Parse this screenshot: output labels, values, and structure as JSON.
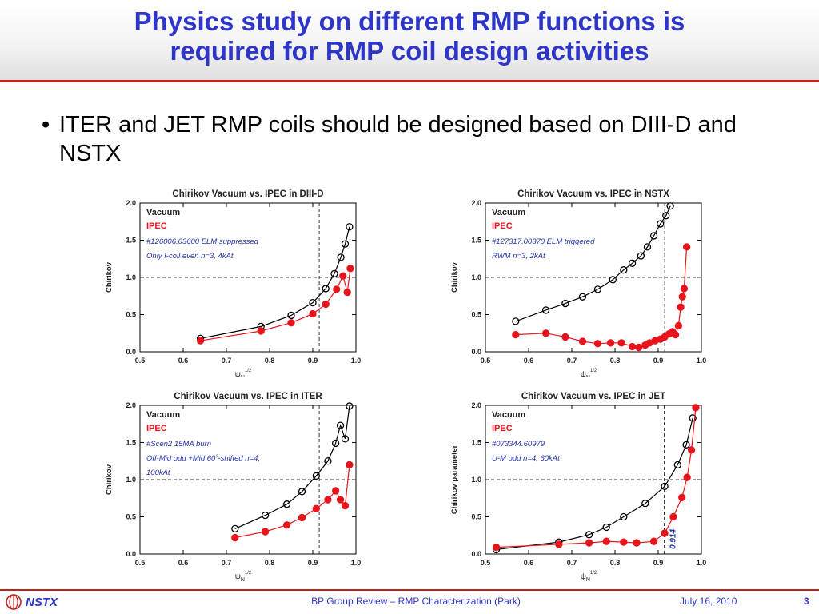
{
  "slide": {
    "title_line1": "Physics study on different RMP functions is",
    "title_line2": "required for RMP coil design activities",
    "bullet_text": "ITER and JET RMP coils should be designed based on DIII-D and NSTX",
    "bullet_glyph": "•"
  },
  "footer": {
    "logo_text": "NSTX",
    "center_text": "BP Group Review  – RMP Characterization (Park)",
    "date": "July 16, 2010",
    "page_number": "3"
  },
  "colors": {
    "title": "#2e36c8",
    "accent_rule": "#c0241f",
    "vacuum": "#000000",
    "ipec": "#e8141c",
    "annotation": "#2332a8"
  },
  "chart_data": [
    {
      "type": "line",
      "title": "Chirikov Vacuum vs. IPEC in DIII-D",
      "xlabel": "ψN1/2",
      "ylabel": "Chirikov",
      "xlim": [
        0.5,
        1.0
      ],
      "ylim": [
        0.0,
        2.0
      ],
      "xticks": [
        "0.5",
        "0.6",
        "0.7",
        "0.8",
        "0.9",
        "1.0"
      ],
      "yticks": [
        "0.0",
        "0.5",
        "1.0",
        "1.5",
        "2.0"
      ],
      "ref_vline": 0.915,
      "ref_hline": 1.0,
      "legend": [
        "Vacuum",
        "IPEC"
      ],
      "annotations": [
        "#126006.03600 ELM suppressed",
        "Only I-coil even n=3, 4kAt"
      ],
      "series": [
        {
          "name": "Vacuum",
          "x": [
            0.64,
            0.78,
            0.85,
            0.9,
            0.93,
            0.95,
            0.965,
            0.975,
            0.985
          ],
          "y": [
            0.18,
            0.34,
            0.49,
            0.66,
            0.85,
            1.05,
            1.27,
            1.45,
            1.68
          ]
        },
        {
          "name": "IPEC",
          "x": [
            0.64,
            0.78,
            0.85,
            0.9,
            0.93,
            0.955,
            0.97,
            0.98,
            0.987
          ],
          "y": [
            0.15,
            0.28,
            0.39,
            0.51,
            0.64,
            0.84,
            1.02,
            0.8,
            1.12
          ]
        }
      ]
    },
    {
      "type": "line",
      "title": "Chirikov Vacuum vs. IPEC in NSTX",
      "xlabel": "ψN1/2",
      "ylabel": "Chirikov",
      "xlim": [
        0.5,
        1.0
      ],
      "ylim": [
        0.0,
        2.0
      ],
      "xticks": [
        "0.5",
        "0.6",
        "0.7",
        "0.8",
        "0.9",
        "1.0"
      ],
      "yticks": [
        "0.0",
        "0.5",
        "1.0",
        "1.5",
        "2.0"
      ],
      "ref_vline": 0.915,
      "ref_hline": 1.0,
      "legend": [
        "Vacuum",
        "IPEC"
      ],
      "annotations": [
        "#127317.00370 ELM triggered",
        "RWM n=3, 2kAt"
      ],
      "series": [
        {
          "name": "Vacuum",
          "x": [
            0.57,
            0.64,
            0.685,
            0.725,
            0.76,
            0.795,
            0.82,
            0.84,
            0.86,
            0.875,
            0.89,
            0.905,
            0.918,
            0.928
          ],
          "y": [
            0.41,
            0.56,
            0.65,
            0.74,
            0.84,
            0.97,
            1.1,
            1.19,
            1.29,
            1.41,
            1.56,
            1.72,
            1.83,
            1.96
          ]
        },
        {
          "name": "IPEC",
          "x": [
            0.57,
            0.64,
            0.685,
            0.725,
            0.76,
            0.79,
            0.815,
            0.84,
            0.855,
            0.87,
            0.88,
            0.893,
            0.905,
            0.915,
            0.925,
            0.933,
            0.94,
            0.947,
            0.952,
            0.956,
            0.96,
            0.966
          ],
          "y": [
            0.23,
            0.25,
            0.2,
            0.14,
            0.11,
            0.12,
            0.12,
            0.07,
            0.06,
            0.09,
            0.12,
            0.15,
            0.17,
            0.2,
            0.24,
            0.27,
            0.23,
            0.35,
            0.6,
            0.74,
            0.85,
            1.41
          ]
        }
      ]
    },
    {
      "type": "line",
      "title": "Chirikov Vacuum vs. IPEC in ITER",
      "xlabel": "ψN1/2",
      "ylabel": "Chirikov",
      "xlim": [
        0.5,
        1.0
      ],
      "ylim": [
        0.0,
        2.0
      ],
      "xticks": [
        "0.5",
        "0.6",
        "0.7",
        "0.8",
        "0.9",
        "1.0"
      ],
      "yticks": [
        "0.0",
        "0.5",
        "1.0",
        "1.5",
        "2.0"
      ],
      "ref_vline": 0.915,
      "ref_hline": 1.0,
      "legend": [
        "Vacuum",
        "IPEC"
      ],
      "annotations": [
        "#Scen2 15MA burn",
        "Off-Mid odd +Mid 60˚-shifted n=4,",
        "100kAt"
      ],
      "series": [
        {
          "name": "Vacuum",
          "x": [
            0.72,
            0.79,
            0.84,
            0.875,
            0.908,
            0.935,
            0.953,
            0.964,
            0.975,
            0.985
          ],
          "y": [
            0.34,
            0.52,
            0.67,
            0.84,
            1.05,
            1.25,
            1.49,
            1.73,
            1.55,
            1.99
          ]
        },
        {
          "name": "IPEC",
          "x": [
            0.72,
            0.79,
            0.84,
            0.875,
            0.908,
            0.935,
            0.953,
            0.964,
            0.975,
            0.985
          ],
          "y": [
            0.22,
            0.3,
            0.39,
            0.49,
            0.61,
            0.73,
            0.85,
            0.73,
            0.65,
            1.2
          ]
        }
      ]
    },
    {
      "type": "line",
      "title": "Chirikov Vacuum vs. IPEC in JET",
      "xlabel": "ψN1/2",
      "ylabel": "Chirikov parameter",
      "xlim": [
        0.5,
        1.0
      ],
      "ylim": [
        0.0,
        2.0
      ],
      "xticks": [
        "0.5",
        "0.6",
        "0.7",
        "0.8",
        "0.9",
        "1.0"
      ],
      "yticks": [
        "0.0",
        "0.5",
        "1.0",
        "1.5",
        "2.0"
      ],
      "ref_vline": 0.914,
      "ref_vline_label": "0.914",
      "ref_hline": 1.0,
      "legend": [
        "Vacuum",
        "IPEC"
      ],
      "annotations": [
        "#073344.60979",
        "U-M odd n=4, 60kAt"
      ],
      "series": [
        {
          "name": "Vacuum",
          "x": [
            0.525,
            0.67,
            0.74,
            0.78,
            0.82,
            0.87,
            0.915,
            0.945,
            0.965,
            0.98
          ],
          "y": [
            0.06,
            0.16,
            0.26,
            0.36,
            0.5,
            0.68,
            0.91,
            1.2,
            1.47,
            1.83
          ]
        },
        {
          "name": "IPEC",
          "x": [
            0.525,
            0.67,
            0.74,
            0.78,
            0.82,
            0.85,
            0.89,
            0.915,
            0.935,
            0.955,
            0.967,
            0.977,
            0.987
          ],
          "y": [
            0.09,
            0.13,
            0.15,
            0.17,
            0.16,
            0.15,
            0.17,
            0.28,
            0.5,
            0.76,
            1.03,
            1.4,
            1.97
          ]
        }
      ]
    }
  ]
}
